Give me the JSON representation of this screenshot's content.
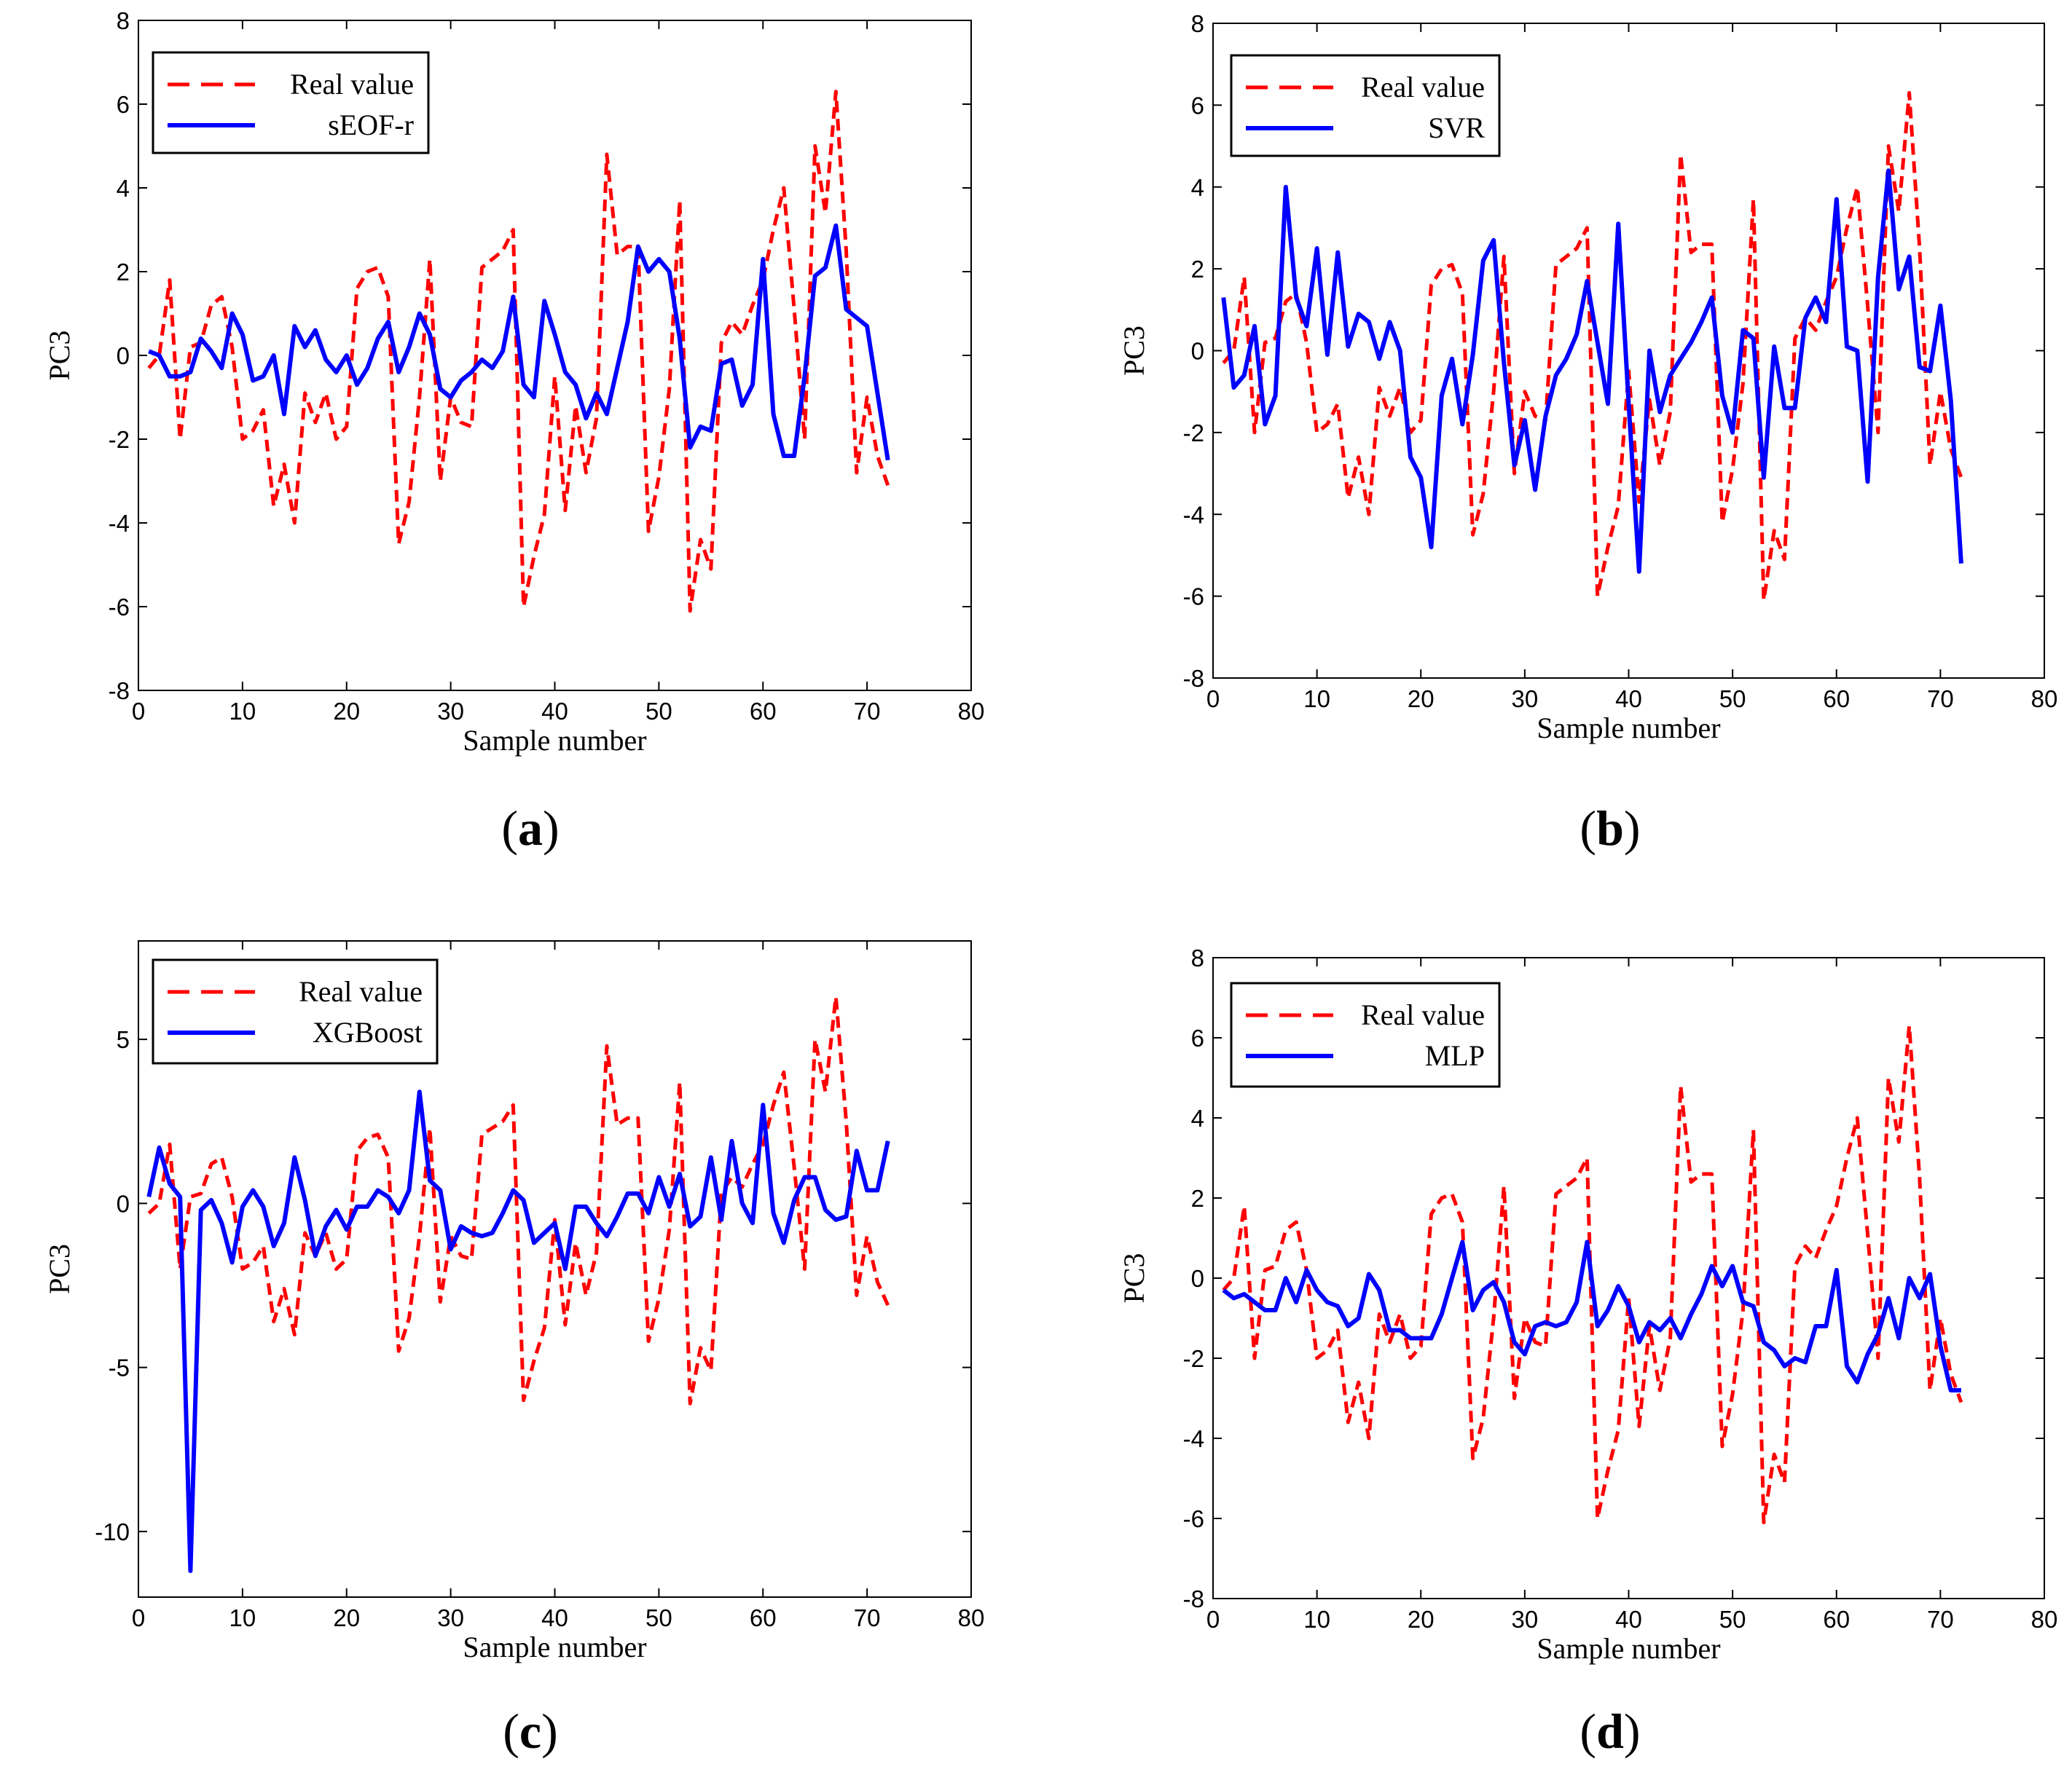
{
  "figure": {
    "panel_count": 4
  },
  "chart_data": [
    {
      "type": "line",
      "caption_prefix": "(",
      "caption_letter": "a",
      "caption_suffix": ")",
      "xlabel": "Sample number",
      "ylabel": "PC3",
      "xlim": [
        0,
        80
      ],
      "ylim": [
        -8,
        8
      ],
      "xticks": [
        0,
        10,
        20,
        30,
        40,
        50,
        60,
        70,
        80
      ],
      "yticks": [
        -8,
        -6,
        -4,
        -2,
        0,
        2,
        4,
        6,
        8
      ],
      "legend_position": "top-left",
      "series": [
        {
          "name": "Real value",
          "color": "#ff0000",
          "style": "dashed",
          "values": [
            -0.3,
            0.0,
            1.8,
            -2.0,
            0.2,
            0.3,
            1.2,
            1.4,
            0.2,
            -2.0,
            -1.8,
            -1.3,
            -3.6,
            -2.6,
            -4.0,
            -0.9,
            -1.6,
            -0.9,
            -2.0,
            -1.7,
            1.6,
            2.0,
            2.1,
            1.4,
            -4.5,
            -3.5,
            -1.0,
            2.3,
            -3.0,
            -1.0,
            -1.6,
            -1.7,
            2.1,
            2.3,
            2.5,
            3.0,
            -6.0,
            -4.8,
            -3.8,
            -0.5,
            -3.7,
            -1.2,
            -2.8,
            -1.5,
            4.8,
            2.4,
            2.6,
            2.6,
            -4.2,
            -2.9,
            -0.8,
            3.7,
            -6.1,
            -4.4,
            -5.1,
            0.3,
            0.8,
            0.5,
            1.2,
            1.8,
            3.0,
            4.0,
            1.1,
            -2.0,
            5.0,
            3.4,
            6.3,
            2.5,
            -2.8,
            -1.0,
            -2.4,
            -3.1
          ]
        },
        {
          "name": "sEOF-r",
          "color": "#0000ff",
          "style": "solid",
          "values": [
            0.1,
            0.0,
            -0.5,
            -0.5,
            -0.4,
            0.4,
            0.1,
            -0.3,
            1.0,
            0.5,
            -0.6,
            -0.5,
            0.0,
            -1.4,
            0.7,
            0.2,
            0.6,
            -0.1,
            -0.4,
            0.0,
            -0.7,
            -0.3,
            0.4,
            0.8,
            -0.4,
            0.2,
            1.0,
            0.5,
            -0.8,
            -1.0,
            -0.6,
            -0.4,
            -0.1,
            -0.3,
            0.1,
            1.4,
            -0.7,
            -1.0,
            1.3,
            0.5,
            -0.4,
            -0.7,
            -1.5,
            -0.9,
            -1.4,
            -0.3,
            0.8,
            2.6,
            2.0,
            2.3,
            2.0,
            0.4,
            -2.2,
            -1.7,
            -1.8,
            -0.2,
            -0.1,
            -1.2,
            -0.7,
            2.3,
            -1.4,
            -2.4,
            -2.4,
            -0.5,
            1.9,
            2.1,
            3.1,
            1.1,
            0.9,
            0.7,
            -0.9,
            -2.5
          ]
        }
      ]
    },
    {
      "type": "line",
      "caption_prefix": "(",
      "caption_letter": "b",
      "caption_suffix": ")",
      "xlabel": "Sample number",
      "ylabel": "PC3",
      "xlim": [
        0,
        80
      ],
      "ylim": [
        -8,
        8
      ],
      "xticks": [
        0,
        10,
        20,
        30,
        40,
        50,
        60,
        70,
        80
      ],
      "yticks": [
        -8,
        -6,
        -4,
        -2,
        0,
        2,
        4,
        6,
        8
      ],
      "legend_position": "top-left",
      "series": [
        {
          "name": "Real value",
          "color": "#ff0000",
          "style": "dashed",
          "values": [
            -0.3,
            0.0,
            1.8,
            -2.0,
            0.2,
            0.3,
            1.2,
            1.4,
            0.2,
            -2.0,
            -1.8,
            -1.3,
            -3.6,
            -2.6,
            -4.0,
            -0.9,
            -1.6,
            -0.9,
            -2.0,
            -1.7,
            1.6,
            2.0,
            2.1,
            1.4,
            -4.5,
            -3.5,
            -1.0,
            2.3,
            -3.0,
            -1.0,
            -1.6,
            -1.7,
            2.1,
            2.3,
            2.5,
            3.0,
            -6.0,
            -4.8,
            -3.8,
            -0.5,
            -3.7,
            -1.2,
            -2.8,
            -1.5,
            4.8,
            2.4,
            2.6,
            2.6,
            -4.2,
            -2.9,
            -0.8,
            3.7,
            -6.1,
            -4.4,
            -5.1,
            0.3,
            0.8,
            0.5,
            1.2,
            1.8,
            3.0,
            4.0,
            1.1,
            -2.0,
            5.0,
            3.4,
            6.3,
            2.5,
            -2.8,
            -1.0,
            -2.4,
            -3.1
          ]
        },
        {
          "name": "SVR",
          "color": "#0000ff",
          "style": "solid",
          "values": [
            1.3,
            -0.9,
            -0.6,
            0.6,
            -1.8,
            -1.1,
            4.0,
            1.3,
            0.6,
            2.5,
            -0.1,
            2.4,
            0.1,
            0.9,
            0.7,
            -0.2,
            0.7,
            0.0,
            -2.6,
            -3.1,
            -4.8,
            -1.1,
            -0.2,
            -1.8,
            -0.1,
            2.2,
            2.7,
            -0.3,
            -2.8,
            -1.7,
            -3.4,
            -1.6,
            -0.6,
            -0.2,
            0.4,
            1.7,
            0.2,
            -1.3,
            3.1,
            -1.3,
            -5.4,
            0.0,
            -1.5,
            -0.6,
            -0.2,
            0.2,
            0.7,
            1.3,
            -1.1,
            -2.0,
            0.5,
            0.3,
            -3.1,
            0.1,
            -1.4,
            -1.4,
            0.8,
            1.3,
            0.7,
            3.7,
            0.1,
            0.0,
            -3.2,
            1.8,
            4.4,
            1.5,
            2.3,
            -0.4,
            -0.5,
            1.1,
            -1.2,
            -5.2
          ]
        }
      ]
    },
    {
      "type": "line",
      "caption_prefix": "(",
      "caption_letter": "c",
      "caption_suffix": ")",
      "xlabel": "Sample number",
      "ylabel": "PC3",
      "xlim": [
        0,
        80
      ],
      "ylim": [
        -12,
        8
      ],
      "xticks": [
        0,
        10,
        20,
        30,
        40,
        50,
        60,
        70,
        80
      ],
      "yticks": [
        -10,
        -5,
        0,
        5
      ],
      "legend_position": "top-left",
      "series": [
        {
          "name": "Real value",
          "color": "#ff0000",
          "style": "dashed",
          "values": [
            -0.3,
            0.0,
            1.8,
            -2.0,
            0.2,
            0.3,
            1.2,
            1.4,
            0.2,
            -2.0,
            -1.8,
            -1.3,
            -3.6,
            -2.6,
            -4.0,
            -0.9,
            -1.6,
            -0.9,
            -2.0,
            -1.7,
            1.6,
            2.0,
            2.1,
            1.4,
            -4.5,
            -3.5,
            -1.0,
            2.3,
            -3.0,
            -1.0,
            -1.6,
            -1.7,
            2.1,
            2.3,
            2.5,
            3.0,
            -6.0,
            -4.8,
            -3.8,
            -0.5,
            -3.7,
            -1.2,
            -2.8,
            -1.5,
            4.8,
            2.4,
            2.6,
            2.6,
            -4.2,
            -2.9,
            -0.8,
            3.7,
            -6.1,
            -4.4,
            -5.1,
            0.3,
            0.8,
            0.5,
            1.2,
            1.8,
            3.0,
            4.0,
            1.1,
            -2.0,
            5.0,
            3.4,
            6.3,
            2.5,
            -2.8,
            -1.0,
            -2.4,
            -3.1
          ]
        },
        {
          "name": "XGBoost",
          "color": "#0000ff",
          "style": "solid",
          "values": [
            0.2,
            1.7,
            0.6,
            0.2,
            -11.2,
            -0.2,
            0.1,
            -0.6,
            -1.8,
            -0.1,
            0.4,
            -0.1,
            -1.3,
            -0.6,
            1.4,
            0.1,
            -1.6,
            -0.7,
            -0.2,
            -0.8,
            -0.1,
            -0.1,
            0.4,
            0.2,
            -0.3,
            0.4,
            3.4,
            0.7,
            0.4,
            -1.4,
            -0.7,
            -0.9,
            -1.0,
            -0.9,
            -0.3,
            0.4,
            0.1,
            -1.2,
            -0.9,
            -0.6,
            -2.0,
            -0.1,
            -0.1,
            -0.6,
            -1.0,
            -0.4,
            0.3,
            0.3,
            -0.3,
            0.8,
            -0.1,
            0.9,
            -0.7,
            -0.4,
            1.4,
            -0.5,
            1.9,
            0.0,
            -0.6,
            3.0,
            -0.3,
            -1.2,
            0.1,
            0.8,
            0.8,
            -0.2,
            -0.5,
            -0.4,
            1.6,
            0.4,
            0.4,
            1.9
          ]
        }
      ]
    },
    {
      "type": "line",
      "caption_prefix": "(",
      "caption_letter": "d",
      "caption_suffix": ")",
      "xlabel": "Sample number",
      "ylabel": "PC3",
      "xlim": [
        0,
        80
      ],
      "ylim": [
        -8,
        8
      ],
      "xticks": [
        0,
        10,
        20,
        30,
        40,
        50,
        60,
        70,
        80
      ],
      "yticks": [
        -8,
        -6,
        -4,
        -2,
        0,
        2,
        4,
        6,
        8
      ],
      "legend_position": "top-left",
      "series": [
        {
          "name": "Real value",
          "color": "#ff0000",
          "style": "dashed",
          "values": [
            -0.3,
            0.0,
            1.8,
            -2.0,
            0.2,
            0.3,
            1.2,
            1.4,
            0.2,
            -2.0,
            -1.8,
            -1.3,
            -3.6,
            -2.6,
            -4.0,
            -0.9,
            -1.6,
            -0.9,
            -2.0,
            -1.7,
            1.6,
            2.0,
            2.1,
            1.4,
            -4.5,
            -3.5,
            -1.0,
            2.3,
            -3.0,
            -1.0,
            -1.6,
            -1.7,
            2.1,
            2.3,
            2.5,
            3.0,
            -6.0,
            -4.8,
            -3.8,
            -0.5,
            -3.7,
            -1.2,
            -2.8,
            -1.5,
            4.8,
            2.4,
            2.6,
            2.6,
            -4.2,
            -2.9,
            -0.8,
            3.7,
            -6.1,
            -4.4,
            -5.1,
            0.3,
            0.8,
            0.5,
            1.2,
            1.8,
            3.0,
            4.0,
            1.1,
            -2.0,
            5.0,
            3.4,
            6.3,
            2.5,
            -2.8,
            -1.0,
            -2.4,
            -3.1
          ]
        },
        {
          "name": "MLP",
          "color": "#0000ff",
          "style": "solid",
          "values": [
            -0.3,
            -0.5,
            -0.4,
            -0.6,
            -0.8,
            -0.8,
            0.0,
            -0.6,
            0.2,
            -0.3,
            -0.6,
            -0.7,
            -1.2,
            -1.0,
            0.1,
            -0.3,
            -1.3,
            -1.3,
            -1.5,
            -1.5,
            -1.5,
            -0.9,
            0.0,
            0.9,
            -0.8,
            -0.3,
            -0.1,
            -0.6,
            -1.6,
            -1.9,
            -1.2,
            -1.1,
            -1.2,
            -1.1,
            -0.6,
            0.9,
            -1.2,
            -0.8,
            -0.2,
            -0.7,
            -1.6,
            -1.1,
            -1.3,
            -1.0,
            -1.5,
            -0.9,
            -0.4,
            0.3,
            -0.2,
            0.3,
            -0.6,
            -0.7,
            -1.6,
            -1.8,
            -2.2,
            -2.0,
            -2.1,
            -1.2,
            -1.2,
            0.2,
            -2.2,
            -2.6,
            -1.9,
            -1.4,
            -0.5,
            -1.5,
            0.0,
            -0.5,
            0.1,
            -1.7,
            -2.8,
            -2.8
          ]
        }
      ]
    }
  ]
}
